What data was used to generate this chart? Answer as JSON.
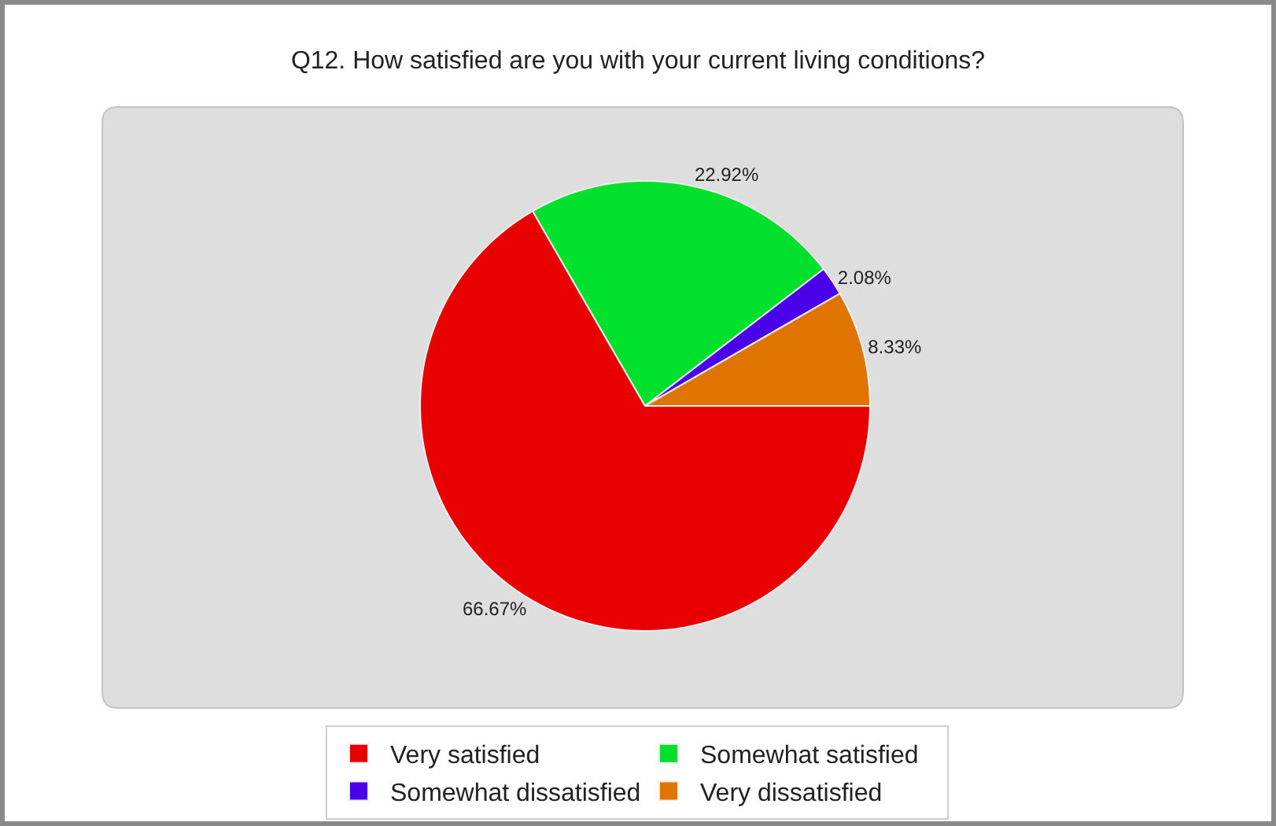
{
  "chart_data": {
    "type": "pie",
    "title": "Q12. How satisfied are you with your current living conditions?",
    "categories": [
      "Very satisfied",
      "Somewhat satisfied",
      "Somewhat dissatisfied",
      "Very dissatisfied"
    ],
    "values": [
      66.67,
      22.92,
      2.08,
      8.33
    ],
    "colors": [
      "#e80000",
      "#00e02c",
      "#4a00e8",
      "#e07400"
    ],
    "value_labels": [
      "66.67%",
      "22.92%",
      "2.08%",
      "8.33%"
    ],
    "legend": "bottom"
  }
}
